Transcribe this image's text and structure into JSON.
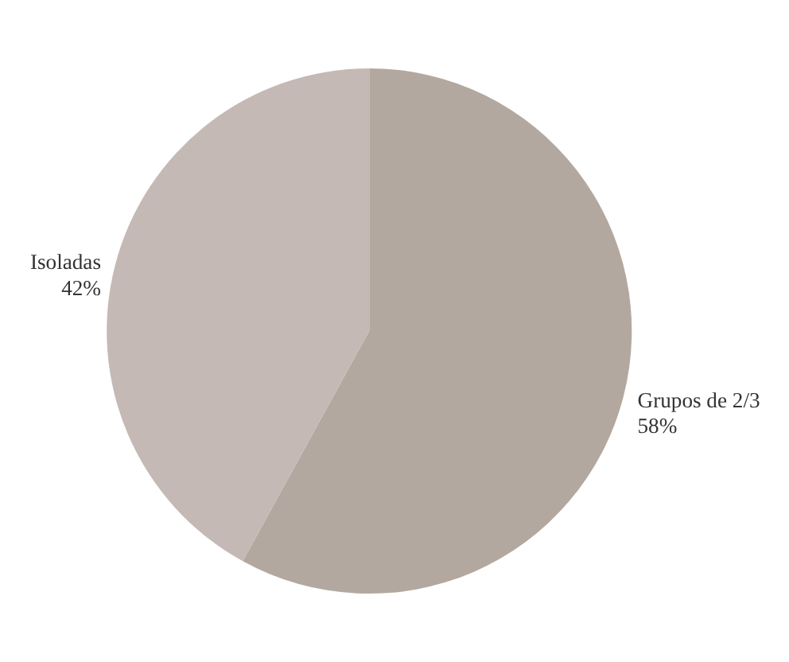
{
  "chart_data": {
    "type": "pie",
    "categories": [
      "Grupos de 2/3",
      "Isoladas"
    ],
    "values": [
      58,
      42
    ],
    "colors": [
      "#b3a89f",
      "#c4b9b4"
    ],
    "value_labels": [
      "58%",
      "42%"
    ]
  }
}
